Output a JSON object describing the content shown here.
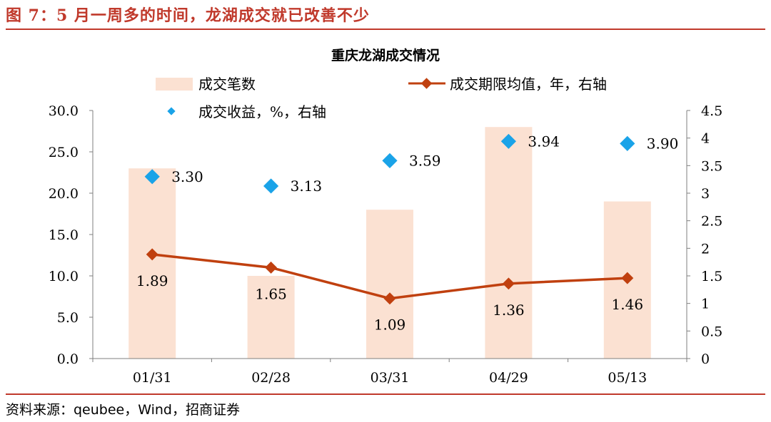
{
  "header": {
    "figure_title": "图 7：5 月一周多的时间，龙湖成交就已改善不少"
  },
  "footer": {
    "source": "资料来源：qeubee，Wind，招商证券"
  },
  "colors": {
    "accent": "#c0392b",
    "bar": "#fbe1d2",
    "line": "#c0400f",
    "marker": "#1aa3e8"
  },
  "chart_data": {
    "type": "bar",
    "title": "重庆龙湖成交情况",
    "categories": [
      "01/31",
      "02/28",
      "03/31",
      "04/29",
      "05/13"
    ],
    "series": [
      {
        "name": "成交笔数",
        "kind": "bar",
        "axis": "left",
        "values": [
          23,
          10,
          18,
          28,
          19
        ]
      },
      {
        "name": "成交期限均值，年，右轴",
        "kind": "line",
        "axis": "right",
        "values": [
          1.89,
          1.65,
          1.09,
          1.36,
          1.46
        ]
      },
      {
        "name": "成交收益，%，右轴",
        "kind": "scatter",
        "axis": "right",
        "values": [
          3.3,
          3.13,
          3.59,
          3.94,
          3.9
        ]
      }
    ],
    "line_labels": [
      "1.89",
      "1.65",
      "1.09",
      "1.36",
      "1.46"
    ],
    "scatter_labels": [
      "3.30",
      "3.13",
      "3.59",
      "3.94",
      "3.90"
    ],
    "y_left": {
      "ylim": [
        0,
        30
      ],
      "ticks": [
        "0.0",
        "5.0",
        "10.0",
        "15.0",
        "20.0",
        "25.0",
        "30.0"
      ]
    },
    "y_right": {
      "ylim": [
        0,
        4.5
      ],
      "ticks": [
        "0",
        "0.5",
        "1",
        "1.5",
        "2",
        "2.5",
        "3",
        "3.5",
        "4",
        "4.5"
      ]
    },
    "legend": "top",
    "grid": false
  }
}
